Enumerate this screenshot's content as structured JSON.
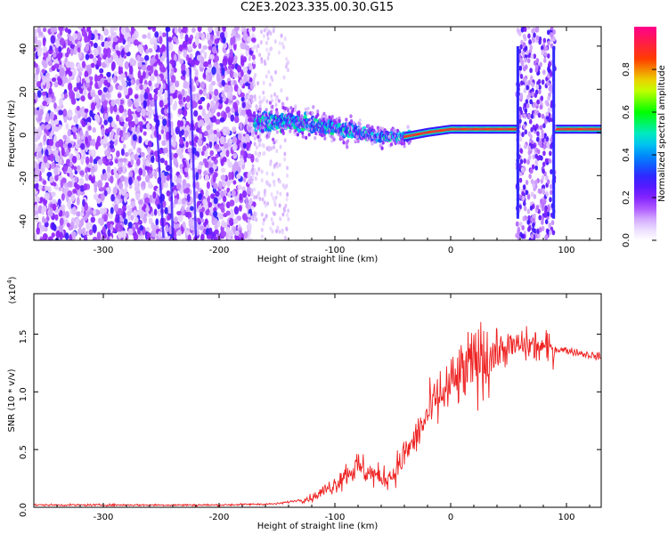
{
  "title": "C2E3.2023.335.00.30.G15",
  "colors": {
    "axis": "#000000",
    "snr_line": "#ee2222",
    "background": "#ffffff"
  },
  "chart_data": [
    {
      "type": "heatmap",
      "title": "C2E3.2023.335.00.30.G15",
      "xlabel": "Height of straight line (km)",
      "ylabel": "Frequency (Hz)",
      "xlim": [
        -360,
        130
      ],
      "ylim": [
        -50,
        49
      ],
      "x_ticks": [
        -300,
        -200,
        -100,
        0,
        100
      ],
      "x_tick_labels": [
        "-300",
        "-200",
        "-100",
        "0",
        "100"
      ],
      "y_ticks": [
        -40,
        -20,
        0,
        20,
        40
      ],
      "y_tick_labels": [
        "-40",
        "-20",
        "0",
        "20",
        "40"
      ],
      "colorbar": {
        "label": "Normalized spectral amplitude",
        "range": [
          0.0,
          1.0
        ],
        "ticks": [
          0.0,
          0.2,
          0.4,
          0.6,
          0.8
        ],
        "tick_labels": [
          "0.0",
          "0.2",
          "0.4",
          "0.6",
          "0.8"
        ],
        "colormap": "rainbow (white-violet-blue-cyan-green-yellow-red-magenta)"
      },
      "description_features": {
        "noise_region_x": [
          -360,
          -170
        ],
        "transition_region_x": [
          -170,
          -40
        ],
        "coherent_band_x": [
          -40,
          130
        ],
        "gap_noise_x": [
          57,
          90
        ],
        "band_frequency_center": [
          [
            -170,
            5
          ],
          [
            -140,
            5
          ],
          [
            -110,
            3
          ],
          [
            -80,
            0
          ],
          [
            -60,
            -2
          ],
          [
            -40,
            -2
          ],
          [
            -20,
            0
          ],
          [
            0,
            1.5
          ],
          [
            130,
            1.5
          ]
        ]
      }
    },
    {
      "type": "line",
      "xlabel": "Height of straight line (km)",
      "ylabel": "SNR (10 * v/v)",
      "y_multiplier_label": "(x10",
      "y_multiplier_exp": "4",
      "y_multiplier_close": ")",
      "xlim": [
        -360,
        130
      ],
      "ylim": [
        0,
        1.85
      ],
      "x_ticks": [
        -300,
        -200,
        -100,
        0,
        100
      ],
      "x_tick_labels": [
        "-300",
        "-200",
        "-100",
        "0",
        "100"
      ],
      "y_ticks": [
        0.0,
        0.5,
        1.0,
        1.5
      ],
      "y_tick_labels": [
        "0.0",
        "0.5",
        "1.0",
        "1.5"
      ],
      "series": [
        {
          "envelope_x": [
            -360,
            -250,
            -200,
            -150,
            -120,
            -100,
            -90,
            -80,
            -70,
            -60,
            -50,
            -40,
            -30,
            -20,
            -10,
            0,
            10,
            20,
            30,
            40,
            50,
            60,
            70,
            80,
            100,
            130
          ],
          "envelope_y": [
            0.02,
            0.02,
            0.02,
            0.03,
            0.08,
            0.2,
            0.3,
            0.35,
            0.3,
            0.25,
            0.28,
            0.45,
            0.6,
            0.8,
            0.95,
            1.05,
            1.15,
            1.25,
            1.3,
            1.35,
            1.38,
            1.4,
            1.4,
            1.38,
            1.36,
            1.3
          ]
        }
      ]
    }
  ]
}
